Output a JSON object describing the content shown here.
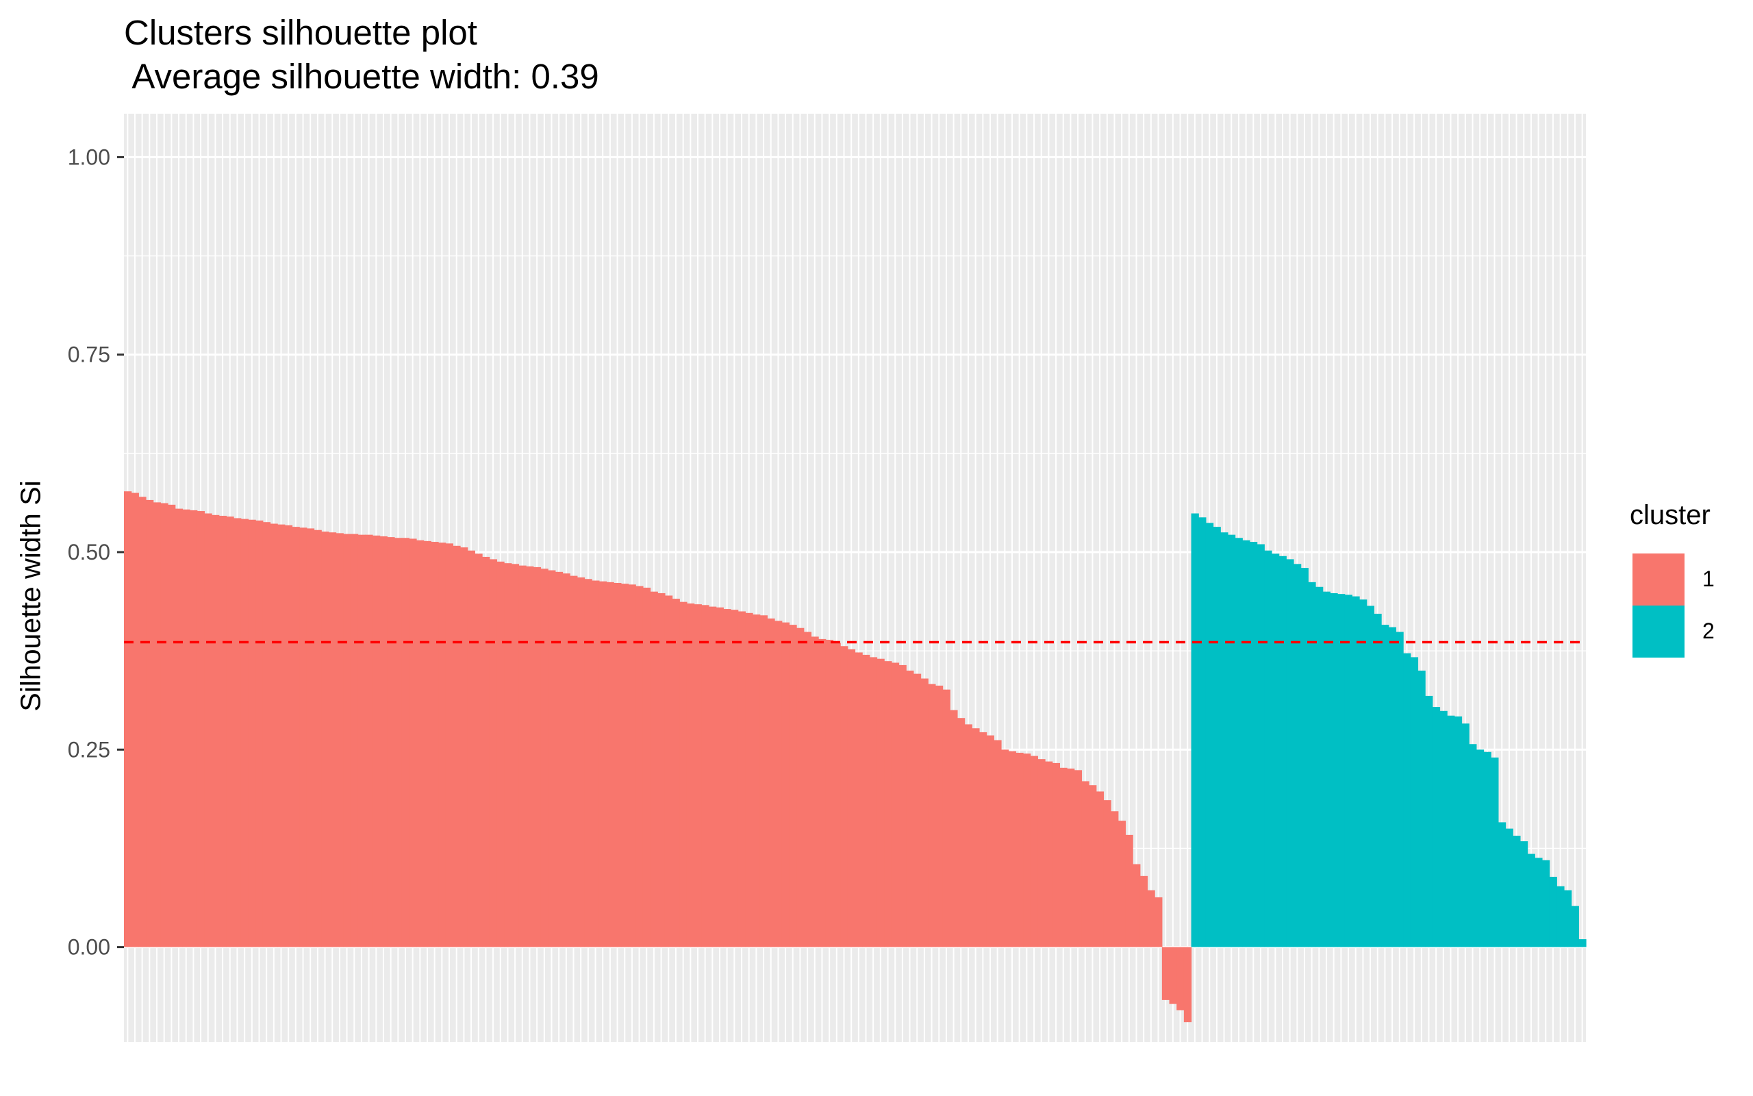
{
  "chart_data": {
    "type": "bar",
    "title": "Clusters silhouette plot",
    "subtitle": " Average silhouette width: 0.39",
    "xlabel": "",
    "ylabel": "Silhouette width Si",
    "ylim": [
      -0.12,
      1.055
    ],
    "yticks": [
      "0.00",
      "0.25",
      "0.50",
      "0.75",
      "1.00"
    ],
    "average_silhouette_width": 0.386,
    "legend": {
      "title": "cluster",
      "position": "right",
      "entries": [
        "1",
        "2"
      ]
    },
    "colors": {
      "1": "#F8766D",
      "2": "#00BFC4",
      "average_line": "#FF0000"
    },
    "grid": true,
    "series": [
      {
        "name": "1",
        "values": [
          0.577,
          0.575,
          0.57,
          0.566,
          0.563,
          0.562,
          0.56,
          0.555,
          0.554,
          0.553,
          0.552,
          0.549,
          0.547,
          0.546,
          0.545,
          0.543,
          0.542,
          0.541,
          0.54,
          0.538,
          0.536,
          0.535,
          0.534,
          0.532,
          0.531,
          0.53,
          0.528,
          0.526,
          0.525,
          0.524,
          0.523,
          0.523,
          0.522,
          0.522,
          0.521,
          0.52,
          0.519,
          0.518,
          0.518,
          0.517,
          0.515,
          0.514,
          0.513,
          0.512,
          0.511,
          0.508,
          0.506,
          0.502,
          0.498,
          0.494,
          0.491,
          0.488,
          0.486,
          0.485,
          0.483,
          0.482,
          0.481,
          0.479,
          0.477,
          0.475,
          0.473,
          0.47,
          0.468,
          0.466,
          0.464,
          0.463,
          0.462,
          0.461,
          0.46,
          0.459,
          0.457,
          0.455,
          0.45,
          0.448,
          0.445,
          0.441,
          0.437,
          0.435,
          0.434,
          0.433,
          0.431,
          0.43,
          0.428,
          0.427,
          0.425,
          0.423,
          0.421,
          0.42,
          0.416,
          0.413,
          0.411,
          0.408,
          0.404,
          0.399,
          0.393,
          0.39,
          0.389,
          0.385,
          0.381,
          0.377,
          0.373,
          0.37,
          0.367,
          0.365,
          0.362,
          0.36,
          0.357,
          0.35,
          0.346,
          0.34,
          0.333,
          0.331,
          0.326,
          0.3,
          0.29,
          0.282,
          0.277,
          0.272,
          0.268,
          0.262,
          0.25,
          0.248,
          0.246,
          0.245,
          0.242,
          0.238,
          0.235,
          0.233,
          0.227,
          0.226,
          0.224,
          0.21,
          0.205,
          0.197,
          0.186,
          0.172,
          0.16,
          0.142,
          0.105,
          0.09,
          0.072,
          0.063,
          -0.067,
          -0.072,
          -0.08,
          -0.095
        ],
        "color": "#F8766D"
      },
      {
        "name": "2",
        "values": [
          0.549,
          0.544,
          0.537,
          0.532,
          0.525,
          0.522,
          0.518,
          0.515,
          0.513,
          0.51,
          0.502,
          0.498,
          0.495,
          0.491,
          0.485,
          0.48,
          0.462,
          0.456,
          0.45,
          0.448,
          0.447,
          0.446,
          0.444,
          0.44,
          0.432,
          0.422,
          0.408,
          0.405,
          0.399,
          0.372,
          0.367,
          0.35,
          0.318,
          0.304,
          0.299,
          0.293,
          0.292,
          0.283,
          0.257,
          0.25,
          0.247,
          0.24,
          0.158,
          0.15,
          0.141,
          0.134,
          0.118,
          0.113,
          0.11,
          0.089,
          0.077,
          0.072,
          0.052,
          0.01
        ],
        "color": "#00BFC4"
      }
    ]
  }
}
